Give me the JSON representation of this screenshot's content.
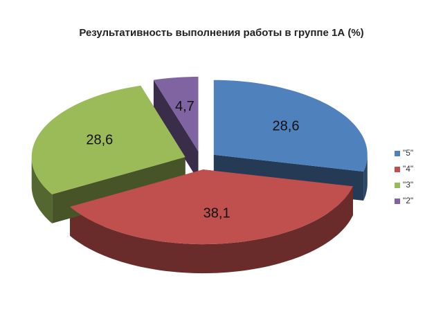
{
  "chart_data": {
    "type": "pie",
    "title": "Результативность выполнения работы в группе 1А (%)",
    "categories": [
      "\"5\"",
      "\"4\"",
      "\"3\"",
      "\"2\""
    ],
    "values": [
      28.6,
      38.1,
      28.6,
      4.7
    ],
    "value_labels": [
      "28,6",
      "38,1",
      "28,6",
      "4,7"
    ],
    "colors": [
      "#4f81bd",
      "#c0504d",
      "#9bbb59",
      "#8064a2"
    ],
    "legend": "right"
  }
}
